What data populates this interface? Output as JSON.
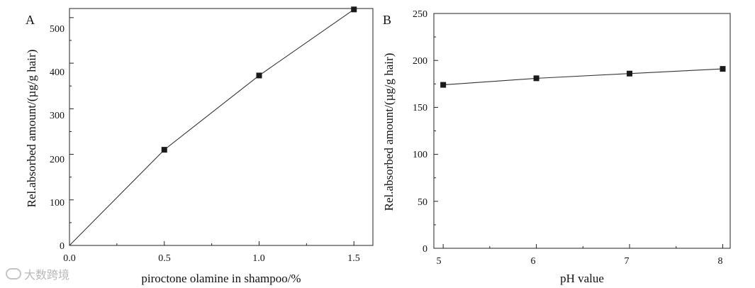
{
  "chart_data": [
    {
      "type": "line",
      "panel_label": "A",
      "xlabel": "piroctone olamine in shampoo/%",
      "ylabel": "Rel.absorbed amount/(µg/g hair)",
      "xlim": [
        0.0,
        1.6
      ],
      "ylim": [
        0,
        520
      ],
      "xticks": [
        "0.0",
        "0.5",
        "1.0",
        "1.5"
      ],
      "yticks": [
        "0",
        "100",
        "200",
        "300",
        "400",
        "500"
      ],
      "series": [
        {
          "x": [
            0.0,
            0.5,
            1.0,
            1.5
          ],
          "y": [
            0,
            210,
            373,
            518
          ]
        }
      ],
      "marker": "square",
      "grid": false
    },
    {
      "type": "line",
      "panel_label": "B",
      "xlabel": "pH value",
      "ylabel": "Rel.absorbed amount/(µg/g hair)",
      "xlim": [
        4.9,
        8.08
      ],
      "ylim": [
        0,
        250
      ],
      "xticks": [
        "5",
        "6",
        "7",
        "8"
      ],
      "yticks": [
        "0",
        "50",
        "100",
        "150",
        "200",
        "250"
      ],
      "series": [
        {
          "x": [
            5,
            6,
            7,
            8
          ],
          "y": [
            174,
            181,
            186,
            191
          ]
        }
      ],
      "marker": "square",
      "grid": false
    }
  ],
  "watermark": {
    "text": "大数跨境"
  }
}
